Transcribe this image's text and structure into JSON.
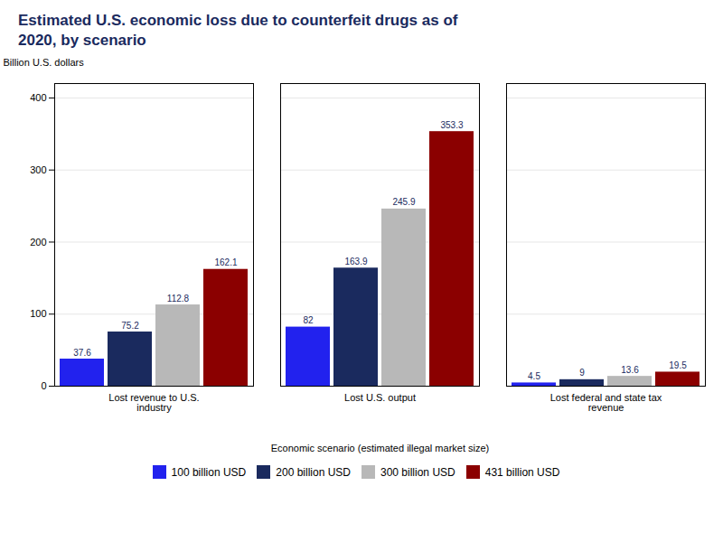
{
  "chart_data": {
    "type": "bar",
    "title": "Estimated U.S. economic loss due to counterfeit drugs as of\n2020, by scenario",
    "categories": [
      "Lost revenue to U.S.\nindustry",
      "Lost U.S. output",
      "Lost federal and state tax\nrevenue"
    ],
    "xlabel": "Economic scenario (estimated illegal market size)",
    "ylabel": "Billion U.S. dollars",
    "series": [
      {
        "name": "100 billion USD",
        "color": "#2222ee",
        "values": [
          37.6,
          82,
          4.5
        ]
      },
      {
        "name": "200 billion USD",
        "color": "#1a2a5e",
        "values": [
          75.2,
          163.9,
          9.0
        ]
      },
      {
        "name": "300 billion USD",
        "color": "#b8b8b8",
        "values": [
          112.8,
          245.9,
          13.6
        ]
      },
      {
        "name": "431 billion USD",
        "color": "#8b0000",
        "values": [
          162.1,
          353.3,
          19.5
        ]
      }
    ],
    "ylim": [
      0,
      420
    ],
    "yticks": [
      0,
      100,
      200,
      300,
      400
    ],
    "grid": true,
    "data_labels": true,
    "legend": "bottom"
  }
}
